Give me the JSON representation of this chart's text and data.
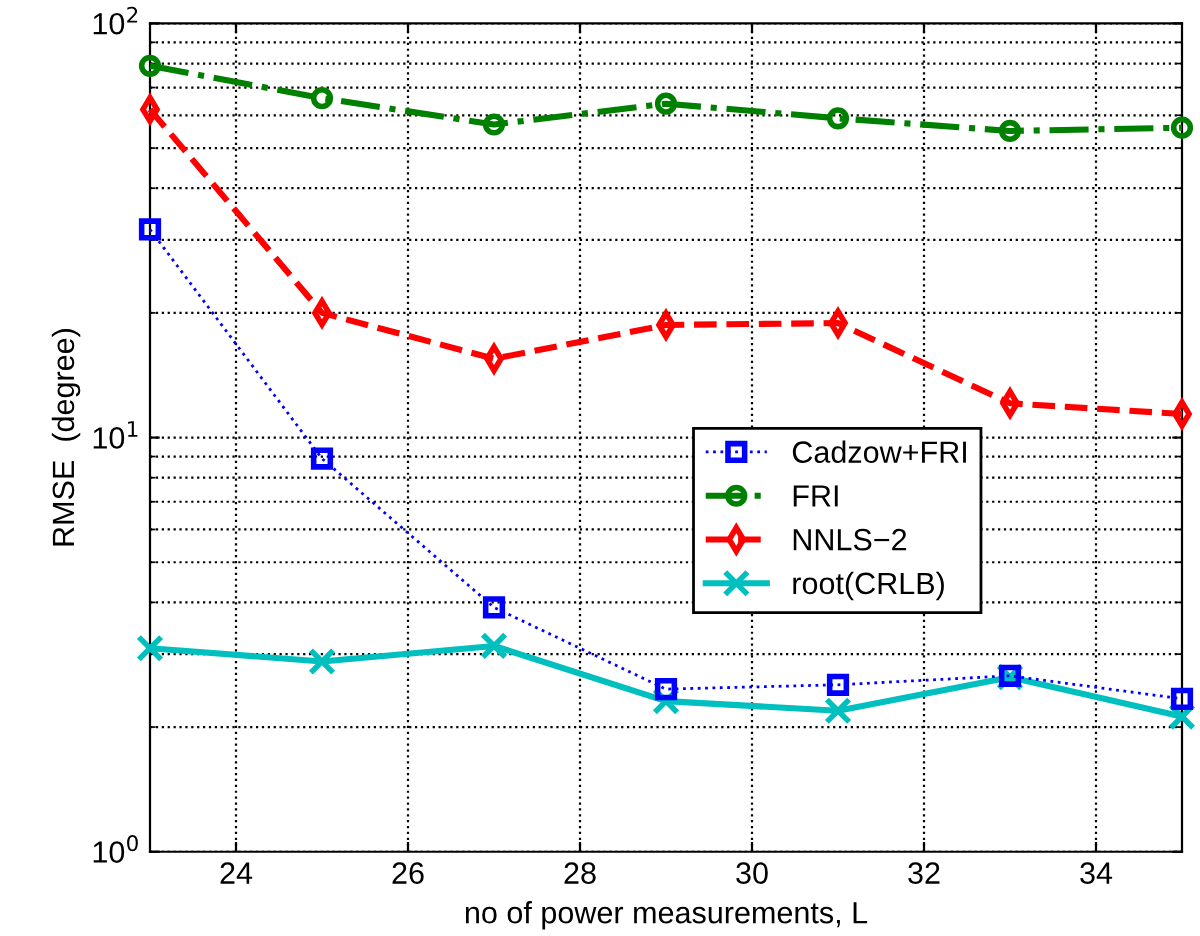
{
  "chart_data": {
    "type": "line",
    "xlabel": "no of power measurements, L",
    "ylabel": "RMSE  (degree)",
    "x": [
      23,
      25,
      27,
      29,
      31,
      33,
      35
    ],
    "xlim": [
      23,
      35
    ],
    "xticks": [
      24,
      26,
      28,
      30,
      32,
      34
    ],
    "ylim": [
      1,
      100
    ],
    "yticks": [
      {
        "value": 1,
        "label": "10$^{0}$"
      },
      {
        "value": 10,
        "label": "10$^{1}$"
      },
      {
        "value": 100,
        "label": "10$^{2}$"
      }
    ],
    "log": "y",
    "grid": true,
    "legend": "center right",
    "series": [
      {
        "name": "Cadzow+FRI",
        "color": "#0000ff",
        "marker": "square",
        "line_style": "dotted",
        "values": [
          31.8,
          8.9,
          3.89,
          2.47,
          2.53,
          2.66,
          2.34
        ]
      },
      {
        "name": "FRI",
        "color": "#008000",
        "marker": "circle",
        "line_style": "dashdot",
        "values": [
          79,
          66,
          57,
          64,
          59,
          55,
          56
        ]
      },
      {
        "name": "NNLS−2",
        "color": "#ff0000",
        "marker": "diamond",
        "line_style": "dashed",
        "values": [
          62,
          20,
          15.5,
          18.7,
          18.9,
          12.1,
          11.4
        ]
      },
      {
        "name": "root(CRLB)",
        "color": "#00bfbf",
        "marker": "cross",
        "line_style": "solid",
        "values": [
          3.1,
          2.88,
          3.14,
          2.31,
          2.19,
          2.64,
          2.12
        ]
      }
    ]
  }
}
